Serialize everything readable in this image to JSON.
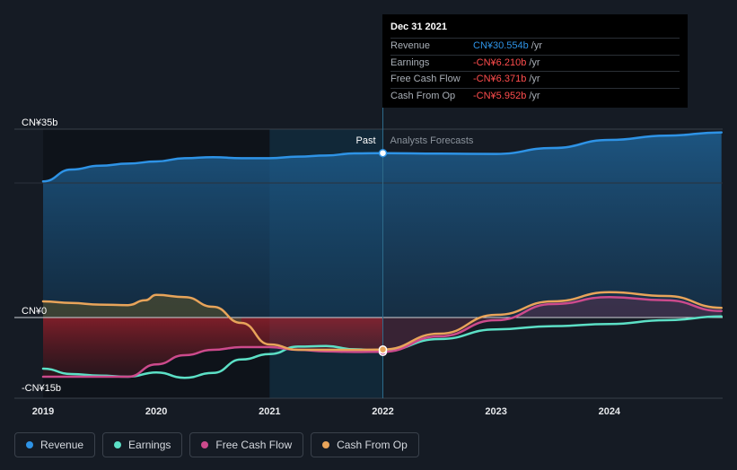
{
  "chart_data": {
    "type": "line",
    "y_ticks": [
      {
        "label": "CN¥35b",
        "value": 35
      },
      {
        "label": "CN¥0",
        "value": 0
      },
      {
        "label": "-CN¥15b",
        "value": -15
      }
    ],
    "x_ticks": [
      "2019",
      "2020",
      "2021",
      "2022",
      "2023",
      "2024"
    ],
    "ylim": [
      -15,
      35
    ],
    "divider_year": 2022,
    "region_past": "Past",
    "region_forecast": "Analysts Forecasts",
    "series": [
      {
        "name": "Revenue",
        "color": "#2e93e6",
        "points": [
          [
            2019.0,
            25.3
          ],
          [
            2019.25,
            27.5
          ],
          [
            2019.5,
            28.2
          ],
          [
            2019.75,
            28.6
          ],
          [
            2020.0,
            29.0
          ],
          [
            2020.25,
            29.6
          ],
          [
            2020.5,
            29.8
          ],
          [
            2020.75,
            29.6
          ],
          [
            2021.0,
            29.6
          ],
          [
            2021.25,
            29.9
          ],
          [
            2021.5,
            30.1
          ],
          [
            2021.75,
            30.5
          ],
          [
            2022.0,
            30.55
          ],
          [
            2022.5,
            30.45
          ],
          [
            2023.0,
            30.4
          ],
          [
            2023.5,
            31.5
          ],
          [
            2024.0,
            33.0
          ],
          [
            2024.5,
            33.8
          ],
          [
            2024.99,
            34.4
          ]
        ]
      },
      {
        "name": "Earnings",
        "color": "#5ce0c6",
        "points": [
          [
            2019.0,
            -9.5
          ],
          [
            2019.25,
            -10.5
          ],
          [
            2019.5,
            -10.8
          ],
          [
            2019.75,
            -11.0
          ],
          [
            2020.0,
            -10.2
          ],
          [
            2020.25,
            -11.2
          ],
          [
            2020.5,
            -10.3
          ],
          [
            2020.75,
            -7.8
          ],
          [
            2021.0,
            -6.8
          ],
          [
            2021.25,
            -5.4
          ],
          [
            2021.5,
            -5.3
          ],
          [
            2021.75,
            -5.9
          ],
          [
            2022.0,
            -6.21
          ],
          [
            2022.5,
            -4.0
          ],
          [
            2023.0,
            -2.2
          ],
          [
            2023.5,
            -1.6
          ],
          [
            2024.0,
            -1.2
          ],
          [
            2024.5,
            -0.5
          ],
          [
            2024.99,
            0.2
          ]
        ]
      },
      {
        "name": "Free Cash Flow",
        "color": "#cc4a8c",
        "points": [
          [
            2019.0,
            -11.0
          ],
          [
            2019.5,
            -11.0
          ],
          [
            2019.75,
            -11.0
          ],
          [
            2020.0,
            -8.7
          ],
          [
            2020.25,
            -7.0
          ],
          [
            2020.5,
            -6.0
          ],
          [
            2020.75,
            -5.5
          ],
          [
            2021.0,
            -5.5
          ],
          [
            2021.25,
            -6.0
          ],
          [
            2021.5,
            -6.3
          ],
          [
            2021.75,
            -6.4
          ],
          [
            2022.0,
            -6.371
          ],
          [
            2022.5,
            -3.5
          ],
          [
            2023.0,
            -0.5
          ],
          [
            2023.5,
            2.5
          ],
          [
            2024.0,
            3.8
          ],
          [
            2024.5,
            3.2
          ],
          [
            2024.99,
            1.2
          ]
        ]
      },
      {
        "name": "Cash From Op",
        "color": "#e8a45a",
        "points": [
          [
            2019.0,
            3.0
          ],
          [
            2019.25,
            2.7
          ],
          [
            2019.5,
            2.4
          ],
          [
            2019.75,
            2.3
          ],
          [
            2019.9,
            3.2
          ],
          [
            2020.0,
            4.2
          ],
          [
            2020.25,
            3.8
          ],
          [
            2020.5,
            2.0
          ],
          [
            2020.75,
            -1.0
          ],
          [
            2021.0,
            -5.0
          ],
          [
            2021.25,
            -6.0
          ],
          [
            2021.5,
            -6.0
          ],
          [
            2021.75,
            -6.0
          ],
          [
            2022.0,
            -5.952
          ],
          [
            2022.5,
            -3.0
          ],
          [
            2023.0,
            0.5
          ],
          [
            2023.5,
            3.0
          ],
          [
            2024.0,
            4.7
          ],
          [
            2024.5,
            4.0
          ],
          [
            2024.99,
            1.8
          ]
        ]
      }
    ]
  },
  "tooltip": {
    "date": "Dec 31 2021",
    "unit": "/yr",
    "rows": [
      {
        "name": "Revenue",
        "value": "CN¥30.554b",
        "color": "#2e93e6"
      },
      {
        "name": "Earnings",
        "value": "-CN¥6.210b",
        "color": "#ff4d4d"
      },
      {
        "name": "Free Cash Flow",
        "value": "-CN¥6.371b",
        "color": "#ff4d4d"
      },
      {
        "name": "Cash From Op",
        "value": "-CN¥5.952b",
        "color": "#ff4d4d"
      }
    ]
  },
  "legend": [
    {
      "label": "Revenue",
      "color": "#2e93e6"
    },
    {
      "label": "Earnings",
      "color": "#5ce0c6"
    },
    {
      "label": "Free Cash Flow",
      "color": "#cc4a8c"
    },
    {
      "label": "Cash From Op",
      "color": "#e8a45a"
    }
  ]
}
